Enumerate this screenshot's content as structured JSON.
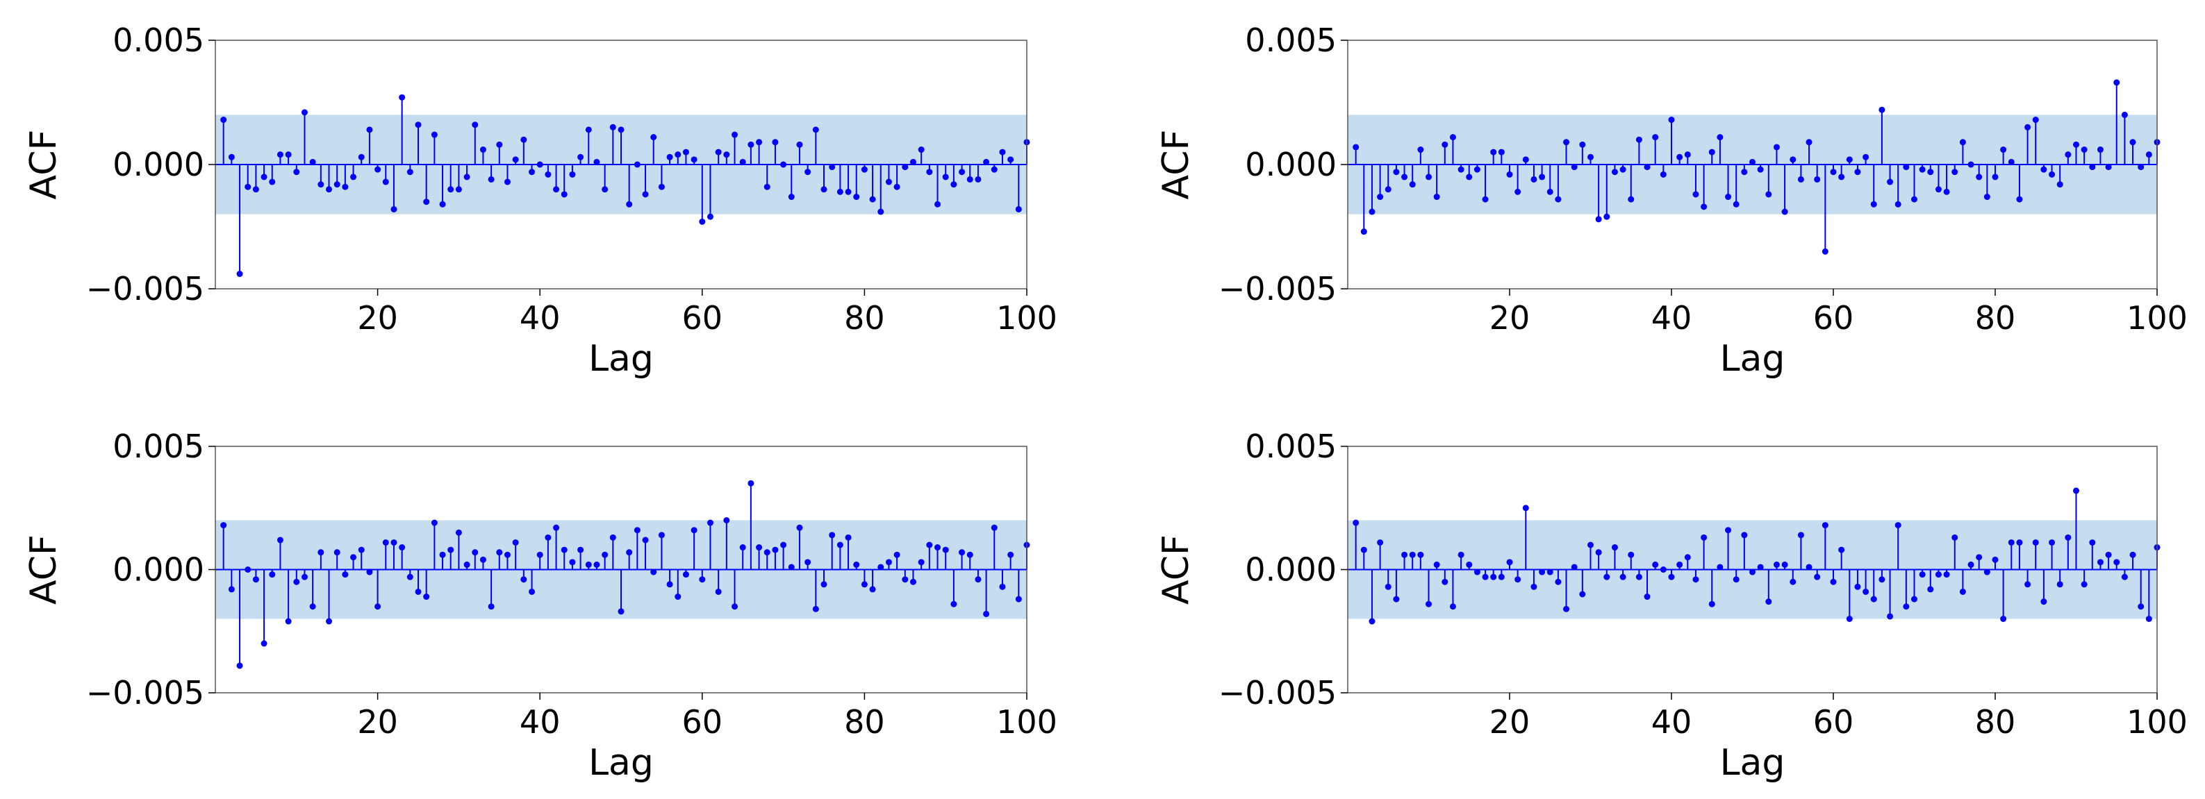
{
  "chart_data": [
    {
      "type": "stem",
      "xlabel": "Lag",
      "ylabel": "ACF",
      "xlim": [
        0,
        100
      ],
      "ylim": [
        -0.005,
        0.005
      ],
      "xticks": [
        20,
        40,
        60,
        80,
        100
      ],
      "yticks": [
        0.005,
        0.0,
        -0.005
      ],
      "ytick_labels": [
        "0.005",
        "0.000",
        "−0.005"
      ],
      "confidence_band": [
        -0.002,
        0.002
      ],
      "colors": {
        "stem": "#0000ff",
        "band": "#c6dcef"
      },
      "grid": false,
      "x": [
        1,
        2,
        3,
        4,
        5,
        6,
        7,
        8,
        9,
        10,
        11,
        12,
        13,
        14,
        15,
        16,
        17,
        18,
        19,
        20,
        21,
        22,
        23,
        24,
        25,
        26,
        27,
        28,
        29,
        30,
        31,
        32,
        33,
        34,
        35,
        36,
        37,
        38,
        39,
        40,
        41,
        42,
        43,
        44,
        45,
        46,
        47,
        48,
        49,
        50,
        51,
        52,
        53,
        54,
        55,
        56,
        57,
        58,
        59,
        60,
        61,
        62,
        63,
        64,
        65,
        66,
        67,
        68,
        69,
        70,
        71,
        72,
        73,
        74,
        75,
        76,
        77,
        78,
        79,
        80,
        81,
        82,
        83,
        84,
        85,
        86,
        87,
        88,
        89,
        90,
        91,
        92,
        93,
        94,
        95,
        96,
        97,
        98,
        99,
        100
      ],
      "values": [
        0.0018,
        0.0003,
        -0.0044,
        -0.0009,
        -0.001,
        -0.0005,
        -0.0007,
        0.0004,
        0.0004,
        -0.0003,
        0.0021,
        0.0001,
        -0.0008,
        -0.001,
        -0.0008,
        -0.0009,
        -0.0005,
        0.0003,
        0.0014,
        -0.0002,
        -0.0007,
        -0.0018,
        0.0027,
        -0.0003,
        0.0016,
        -0.0015,
        0.0012,
        -0.0016,
        -0.001,
        -0.001,
        -0.0005,
        0.0016,
        0.0006,
        -0.0006,
        0.0008,
        -0.0007,
        0.0002,
        0.001,
        -0.0003,
        0.0,
        -0.0004,
        -0.001,
        -0.0012,
        -0.0004,
        0.0003,
        0.0014,
        0.0001,
        -0.001,
        0.0015,
        0.0014,
        -0.0016,
        0.0,
        -0.0012,
        0.0011,
        -0.0009,
        0.0003,
        0.0004,
        0.0005,
        0.0002,
        -0.0023,
        -0.0021,
        0.0005,
        0.0004,
        0.0012,
        0.0001,
        0.0008,
        0.0009,
        -0.0009,
        0.0009,
        0.0,
        -0.0013,
        0.0008,
        -0.0003,
        0.0014,
        -0.001,
        -0.0001,
        -0.0011,
        -0.0011,
        -0.0013,
        -0.0002,
        -0.0014,
        -0.0019,
        -0.0007,
        -0.0009,
        -0.0001,
        0.0001,
        0.0006,
        -0.0003,
        -0.0016,
        -0.0005,
        -0.0008,
        -0.0003,
        -0.0006,
        -0.0006,
        0.0001,
        -0.0002,
        0.0005,
        0.0002,
        -0.0018,
        0.0009
      ]
    },
    {
      "type": "stem",
      "xlabel": "Lag",
      "ylabel": "ACF",
      "xlim": [
        0,
        100
      ],
      "ylim": [
        -0.005,
        0.005
      ],
      "xticks": [
        20,
        40,
        60,
        80,
        100
      ],
      "yticks": [
        0.005,
        0.0,
        -0.005
      ],
      "ytick_labels": [
        "0.005",
        "0.000",
        "−0.005"
      ],
      "confidence_band": [
        -0.002,
        0.002
      ],
      "colors": {
        "stem": "#0000ff",
        "band": "#c6dcef"
      },
      "grid": false,
      "x": [
        1,
        2,
        3,
        4,
        5,
        6,
        7,
        8,
        9,
        10,
        11,
        12,
        13,
        14,
        15,
        16,
        17,
        18,
        19,
        20,
        21,
        22,
        23,
        24,
        25,
        26,
        27,
        28,
        29,
        30,
        31,
        32,
        33,
        34,
        35,
        36,
        37,
        38,
        39,
        40,
        41,
        42,
        43,
        44,
        45,
        46,
        47,
        48,
        49,
        50,
        51,
        52,
        53,
        54,
        55,
        56,
        57,
        58,
        59,
        60,
        61,
        62,
        63,
        64,
        65,
        66,
        67,
        68,
        69,
        70,
        71,
        72,
        73,
        74,
        75,
        76,
        77,
        78,
        79,
        80,
        81,
        82,
        83,
        84,
        85,
        86,
        87,
        88,
        89,
        90,
        91,
        92,
        93,
        94,
        95,
        96,
        97,
        98,
        99,
        100
      ],
      "values": [
        0.0007,
        -0.0027,
        -0.0019,
        -0.0013,
        -0.001,
        -0.0003,
        -0.0005,
        -0.0008,
        0.0006,
        -0.0005,
        -0.0013,
        0.0008,
        0.0011,
        -0.0002,
        -0.0005,
        -0.0002,
        -0.0014,
        0.0005,
        0.0005,
        -0.0004,
        -0.0011,
        0.0002,
        -0.0006,
        -0.0005,
        -0.0011,
        -0.0014,
        0.0009,
        -0.0001,
        0.0008,
        0.0003,
        -0.0022,
        -0.0021,
        -0.0003,
        -0.0002,
        -0.0014,
        0.001,
        -0.0001,
        0.0011,
        -0.0004,
        0.0018,
        0.0003,
        0.0004,
        -0.0012,
        -0.0017,
        0.0005,
        0.0011,
        -0.0013,
        -0.0016,
        -0.0003,
        0.0001,
        -0.0002,
        -0.0012,
        0.0007,
        -0.0019,
        0.0002,
        -0.0006,
        0.0009,
        -0.0006,
        -0.0035,
        -0.0003,
        -0.0005,
        0.0002,
        -0.0003,
        0.0003,
        -0.0016,
        0.0022,
        -0.0007,
        -0.0016,
        -0.0001,
        -0.0014,
        -0.0002,
        -0.0003,
        -0.001,
        -0.0011,
        -0.0003,
        0.0009,
        0.0,
        -0.0005,
        -0.0013,
        -0.0005,
        0.0006,
        0.0001,
        -0.0014,
        0.0015,
        0.0018,
        -0.0002,
        -0.0004,
        -0.0008,
        0.0004,
        0.0008,
        0.0006,
        -0.0001,
        0.0006,
        -0.0001,
        0.0033,
        0.002,
        0.0009,
        -0.0001,
        0.0004,
        0.0009
      ]
    },
    {
      "type": "stem",
      "xlabel": "Lag",
      "ylabel": "ACF",
      "xlim": [
        0,
        100
      ],
      "ylim": [
        -0.005,
        0.005
      ],
      "xticks": [
        20,
        40,
        60,
        80,
        100
      ],
      "yticks": [
        0.005,
        0.0,
        -0.005
      ],
      "ytick_labels": [
        "0.005",
        "0.000",
        "−0.005"
      ],
      "confidence_band": [
        -0.002,
        0.002
      ],
      "colors": {
        "stem": "#0000ff",
        "band": "#c6dcef"
      },
      "grid": false,
      "x": [
        1,
        2,
        3,
        4,
        5,
        6,
        7,
        8,
        9,
        10,
        11,
        12,
        13,
        14,
        15,
        16,
        17,
        18,
        19,
        20,
        21,
        22,
        23,
        24,
        25,
        26,
        27,
        28,
        29,
        30,
        31,
        32,
        33,
        34,
        35,
        36,
        37,
        38,
        39,
        40,
        41,
        42,
        43,
        44,
        45,
        46,
        47,
        48,
        49,
        50,
        51,
        52,
        53,
        54,
        55,
        56,
        57,
        58,
        59,
        60,
        61,
        62,
        63,
        64,
        65,
        66,
        67,
        68,
        69,
        70,
        71,
        72,
        73,
        74,
        75,
        76,
        77,
        78,
        79,
        80,
        81,
        82,
        83,
        84,
        85,
        86,
        87,
        88,
        89,
        90,
        91,
        92,
        93,
        94,
        95,
        96,
        97,
        98,
        99,
        100
      ],
      "values": [
        0.0018,
        -0.0008,
        -0.0039,
        0.0,
        -0.0004,
        -0.003,
        -0.0002,
        0.0012,
        -0.0021,
        -0.0005,
        -0.0003,
        -0.0015,
        0.0007,
        -0.0021,
        0.0007,
        -0.0002,
        0.0005,
        0.0008,
        -0.0001,
        -0.0015,
        0.0011,
        0.0011,
        0.0009,
        -0.0003,
        -0.0009,
        -0.0011,
        0.0019,
        0.0006,
        0.0008,
        0.0015,
        0.0002,
        0.0007,
        0.0004,
        -0.0015,
        0.0007,
        0.0006,
        0.0011,
        -0.0004,
        -0.0009,
        0.0006,
        0.0013,
        0.0017,
        0.0008,
        0.0003,
        0.0008,
        0.0002,
        0.0002,
        0.0006,
        0.0013,
        -0.0017,
        0.0007,
        0.0016,
        0.0012,
        -0.0001,
        0.0014,
        -0.0006,
        -0.0011,
        -0.0002,
        0.0016,
        -0.0004,
        0.0019,
        -0.0009,
        0.002,
        -0.0015,
        0.0009,
        0.0035,
        0.0009,
        0.0007,
        0.0008,
        0.001,
        0.0001,
        0.0017,
        0.0003,
        -0.0016,
        -0.0006,
        0.0014,
        0.001,
        0.0013,
        0.0002,
        -0.0006,
        -0.0008,
        0.0001,
        0.0003,
        0.0006,
        -0.0004,
        -0.0005,
        0.0003,
        0.001,
        0.0009,
        0.0008,
        -0.0014,
        0.0007,
        0.0006,
        -0.0004,
        -0.0018,
        0.0017,
        -0.0007,
        0.0006,
        -0.0012,
        0.001
      ]
    },
    {
      "type": "stem",
      "xlabel": "Lag",
      "ylabel": "ACF",
      "xlim": [
        0,
        100
      ],
      "ylim": [
        -0.005,
        0.005
      ],
      "xticks": [
        20,
        40,
        60,
        80,
        100
      ],
      "yticks": [
        0.005,
        0.0,
        -0.005
      ],
      "ytick_labels": [
        "0.005",
        "0.000",
        "−0.005"
      ],
      "confidence_band": [
        -0.002,
        0.002
      ],
      "colors": {
        "stem": "#0000ff",
        "band": "#c6dcef"
      },
      "grid": false,
      "x": [
        1,
        2,
        3,
        4,
        5,
        6,
        7,
        8,
        9,
        10,
        11,
        12,
        13,
        14,
        15,
        16,
        17,
        18,
        19,
        20,
        21,
        22,
        23,
        24,
        25,
        26,
        27,
        28,
        29,
        30,
        31,
        32,
        33,
        34,
        35,
        36,
        37,
        38,
        39,
        40,
        41,
        42,
        43,
        44,
        45,
        46,
        47,
        48,
        49,
        50,
        51,
        52,
        53,
        54,
        55,
        56,
        57,
        58,
        59,
        60,
        61,
        62,
        63,
        64,
        65,
        66,
        67,
        68,
        69,
        70,
        71,
        72,
        73,
        74,
        75,
        76,
        77,
        78,
        79,
        80,
        81,
        82,
        83,
        84,
        85,
        86,
        87,
        88,
        89,
        90,
        91,
        92,
        93,
        94,
        95,
        96,
        97,
        98,
        99,
        100
      ],
      "values": [
        0.0019,
        0.0008,
        -0.0021,
        0.0011,
        -0.0007,
        -0.0012,
        0.0006,
        0.0006,
        0.0006,
        -0.0014,
        0.0002,
        -0.0005,
        -0.0015,
        0.0006,
        0.0002,
        -0.0001,
        -0.0003,
        -0.0003,
        -0.0003,
        0.0003,
        -0.0004,
        0.0025,
        -0.0007,
        -0.0001,
        -0.0001,
        -0.0005,
        -0.0016,
        0.0001,
        -0.001,
        0.001,
        0.0007,
        -0.0003,
        0.0009,
        -0.0003,
        0.0006,
        -0.0003,
        -0.0011,
        0.0002,
        0.0,
        -0.0003,
        0.0002,
        0.0005,
        -0.0004,
        0.0013,
        -0.0014,
        0.0001,
        0.0016,
        -0.0004,
        0.0014,
        -0.0001,
        0.0001,
        -0.0013,
        0.0002,
        0.0002,
        -0.0005,
        0.0014,
        0.0001,
        -0.0003,
        0.0018,
        -0.0005,
        0.0008,
        -0.002,
        -0.0007,
        -0.0009,
        -0.0012,
        -0.0004,
        -0.0019,
        0.0018,
        -0.0015,
        -0.0012,
        -0.0002,
        -0.0008,
        -0.0002,
        -0.0002,
        0.0013,
        -0.0009,
        0.0002,
        0.0005,
        -0.0001,
        0.0004,
        -0.002,
        0.0011,
        0.0011,
        -0.0006,
        0.0011,
        -0.0013,
        0.0011,
        -0.0006,
        0.0013,
        0.0032,
        -0.0006,
        0.0011,
        0.0003,
        0.0006,
        0.0003,
        -0.0003,
        0.0006,
        -0.0015,
        -0.002,
        0.0009
      ]
    }
  ]
}
